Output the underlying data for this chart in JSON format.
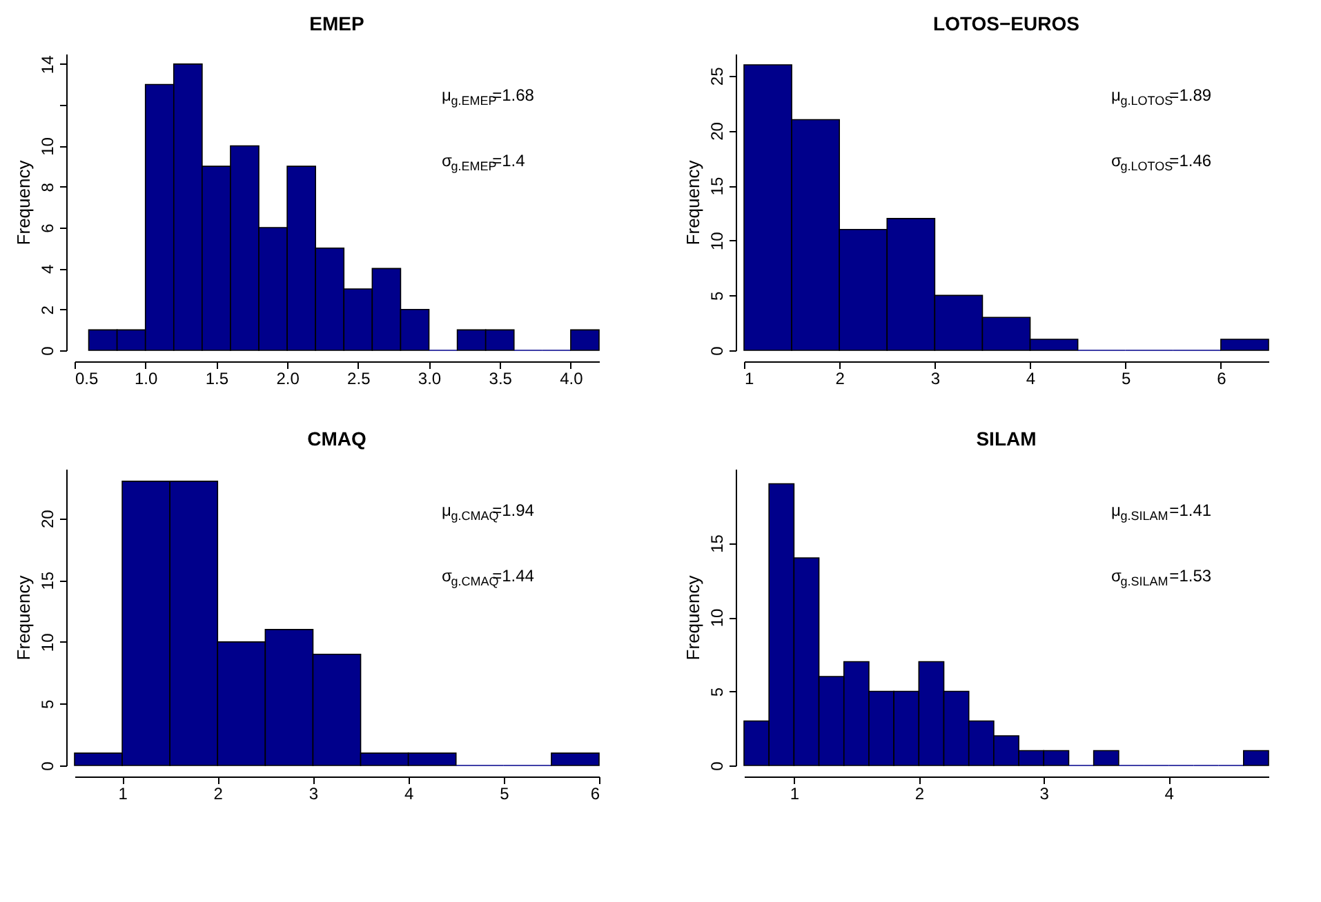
{
  "chart_data": [
    {
      "type": "histogram",
      "title": "EMEP",
      "ylabel": "Frequency",
      "color": "#00008b",
      "grid": false,
      "bins": [
        0.6,
        0.8,
        1.0,
        1.2,
        1.4,
        1.6,
        1.8,
        2.0,
        2.2,
        2.4,
        2.6,
        2.8,
        3.0,
        3.2,
        3.4,
        3.6,
        3.8,
        4.0,
        4.2
      ],
      "values": [
        1,
        1,
        13,
        14,
        9,
        10,
        6,
        9,
        5,
        3,
        4,
        2,
        0,
        1,
        1,
        0,
        0,
        1
      ],
      "xlim": [
        0.5,
        4.2
      ],
      "xticks": [
        {
          "value": 0.5,
          "label": "0.5"
        },
        {
          "value": 1.0,
          "label": "1.0"
        },
        {
          "value": 1.5,
          "label": "1.5"
        },
        {
          "value": 2.0,
          "label": "2.0"
        },
        {
          "value": 2.5,
          "label": "2.5"
        },
        {
          "value": 3.0,
          "label": "3.0"
        },
        {
          "value": 3.5,
          "label": "3.5"
        },
        {
          "value": 4.0,
          "label": "4.0"
        }
      ],
      "ylim": [
        0,
        14.5
      ],
      "yticks": [
        0,
        2,
        4,
        6,
        8,
        10,
        {
          "value": 12,
          "label": null
        },
        14
      ],
      "annotations": [
        "μ$_{g.EMEP}$=1.68",
        "σ$_{g.EMEP}$=1.4"
      ]
    },
    {
      "type": "histogram",
      "title": "LOTOS−EUROS",
      "ylabel": "Frequency",
      "color": "#00008b",
      "grid": false,
      "bins": [
        1,
        1.5,
        2,
        2.5,
        3,
        3.5,
        4,
        4.5,
        5,
        5.5,
        6,
        6.5
      ],
      "values": [
        26,
        21,
        11,
        12,
        5,
        3,
        1,
        0,
        0,
        0,
        1
      ],
      "xlim": [
        1,
        6.5
      ],
      "xticks": [
        1,
        2,
        3,
        4,
        5,
        6
      ],
      "ylim": [
        0,
        27
      ],
      "yticks": [
        0,
        5,
        10,
        15,
        20,
        25
      ],
      "annotations": [
        "μ$_{g.LOTOS}$=1.89",
        "σ$_{g.LOTOS}$=1.46"
      ]
    },
    {
      "type": "histogram",
      "title": "CMAQ",
      "ylabel": "Frequency",
      "color": "#00008b",
      "grid": false,
      "bins": [
        0.5,
        1,
        1.5,
        2,
        2.5,
        3,
        3.5,
        4,
        4.5,
        5,
        5.5,
        6
      ],
      "values": [
        1,
        23,
        23,
        10,
        11,
        9,
        1,
        1,
        0,
        0,
        1
      ],
      "xlim": [
        0.5,
        6
      ],
      "xticks": [
        1,
        2,
        3,
        4,
        5,
        6
      ],
      "ylim": [
        0,
        24
      ],
      "yticks": [
        0,
        5,
        10,
        15,
        20
      ],
      "annotations": [
        "μ$_{g.CMAQ}$=1.94",
        "σ$_{g.CMAQ}$=1.44"
      ]
    },
    {
      "type": "histogram",
      "title": "SILAM",
      "ylabel": "Frequency",
      "color": "#00008b",
      "grid": false,
      "bins": [
        0.6,
        0.8,
        1.0,
        1.2,
        1.4,
        1.6,
        1.8,
        2.0,
        2.2,
        2.4,
        2.6,
        2.8,
        3.0,
        3.2,
        3.4,
        3.6,
        3.8,
        4.0,
        4.2,
        4.4,
        4.6,
        4.8
      ],
      "values": [
        3,
        19,
        14,
        6,
        7,
        5,
        5,
        7,
        5,
        3,
        2,
        1,
        1,
        0,
        1,
        0,
        0,
        0,
        0,
        0,
        1
      ],
      "xlim": [
        0.6,
        4.8
      ],
      "xticks": [
        1,
        2,
        3,
        4
      ],
      "ylim": [
        0,
        20
      ],
      "yticks": [
        0,
        5,
        10,
        15
      ],
      "annotations": [
        "μ$_{g.SILAM}$=1.41",
        "σ$_{g.SILAM}$=1.53"
      ]
    }
  ]
}
